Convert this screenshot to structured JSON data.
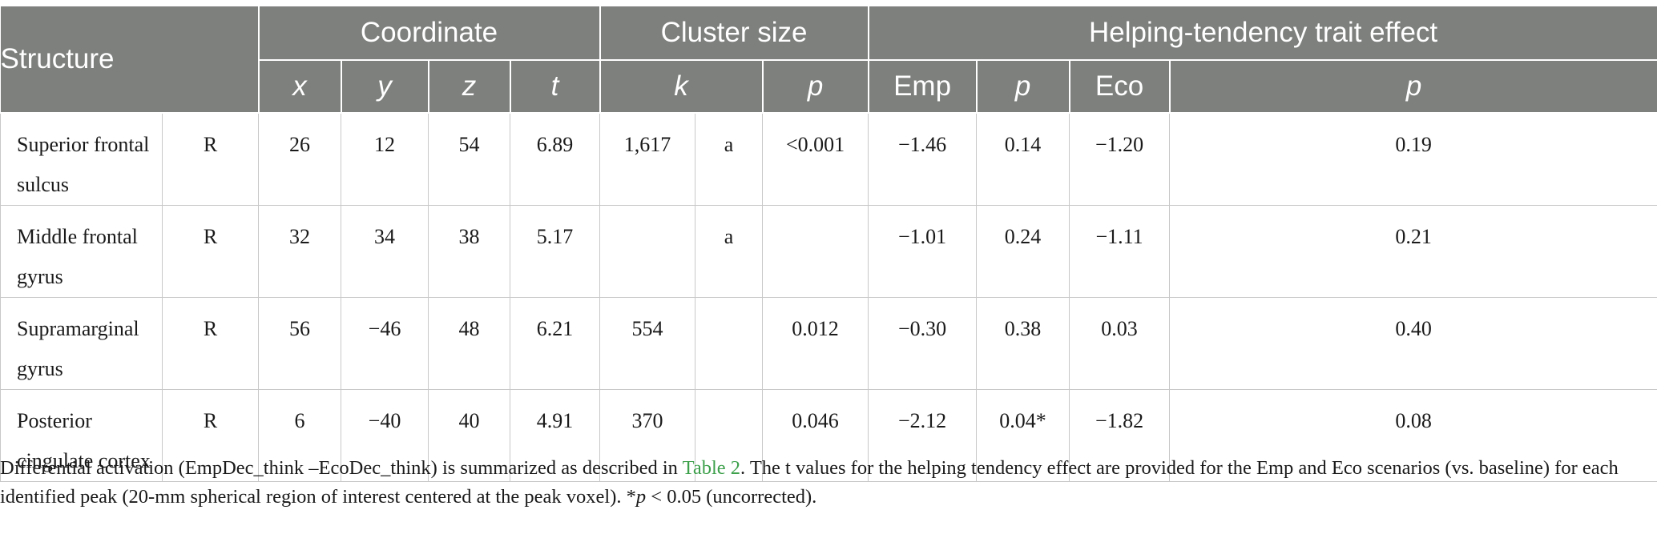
{
  "header": {
    "structure": "Structure",
    "coordinate": "Coordinate",
    "cluster_size": "Cluster size",
    "helping_effect": "Helping-tendency trait effect",
    "sub": {
      "x": "x",
      "y": "y",
      "z": "z",
      "t": "t",
      "k": "k",
      "p": "p",
      "emp": "Emp",
      "emp_p": "p",
      "eco": "Eco",
      "eco_p": "p"
    }
  },
  "rows": [
    {
      "structure": "Superior frontal sulcus",
      "side": "R",
      "x": "26",
      "y": "12",
      "z": "54",
      "t": "6.89",
      "k": "1,617",
      "k_note": "a",
      "p": "<0.001",
      "emp": "−1.46",
      "emp_p": "0.14",
      "eco": "−1.20",
      "eco_p": "0.19"
    },
    {
      "structure": "Middle frontal gyrus",
      "side": "R",
      "x": "32",
      "y": "34",
      "z": "38",
      "t": "5.17",
      "k": "",
      "k_note": "a",
      "p": "",
      "emp": "−1.01",
      "emp_p": "0.24",
      "eco": "−1.11",
      "eco_p": "0.21"
    },
    {
      "structure": "Supramarginal gyrus",
      "side": "R",
      "x": "56",
      "y": "−46",
      "z": "48",
      "t": "6.21",
      "k": "554",
      "k_note": "",
      "p": "0.012",
      "emp": "−0.30",
      "emp_p": "0.38",
      "eco": "0.03",
      "eco_p": "0.40"
    },
    {
      "structure": "Posterior cingulate cortex",
      "side": "R",
      "x": "6",
      "y": "−40",
      "z": "40",
      "t": "4.91",
      "k": "370",
      "k_note": "",
      "p": "0.046",
      "emp": "−2.12",
      "emp_p": "0.04*",
      "eco": "−1.82",
      "eco_p": "0.08"
    }
  ],
  "caption": {
    "part1": "Differential activation (EmpDec_think –EcoDec_think) is summarized as described in ",
    "link": "Table 2",
    "part2": ". The t values for the helping tendency effect are provided for the Emp and Eco scenarios (vs. baseline) for each identified peak (20-mm spherical region of interest centered at the peak voxel). *",
    "p_symbol": "p",
    "part3": " < 0.05 (uncorrected)."
  }
}
